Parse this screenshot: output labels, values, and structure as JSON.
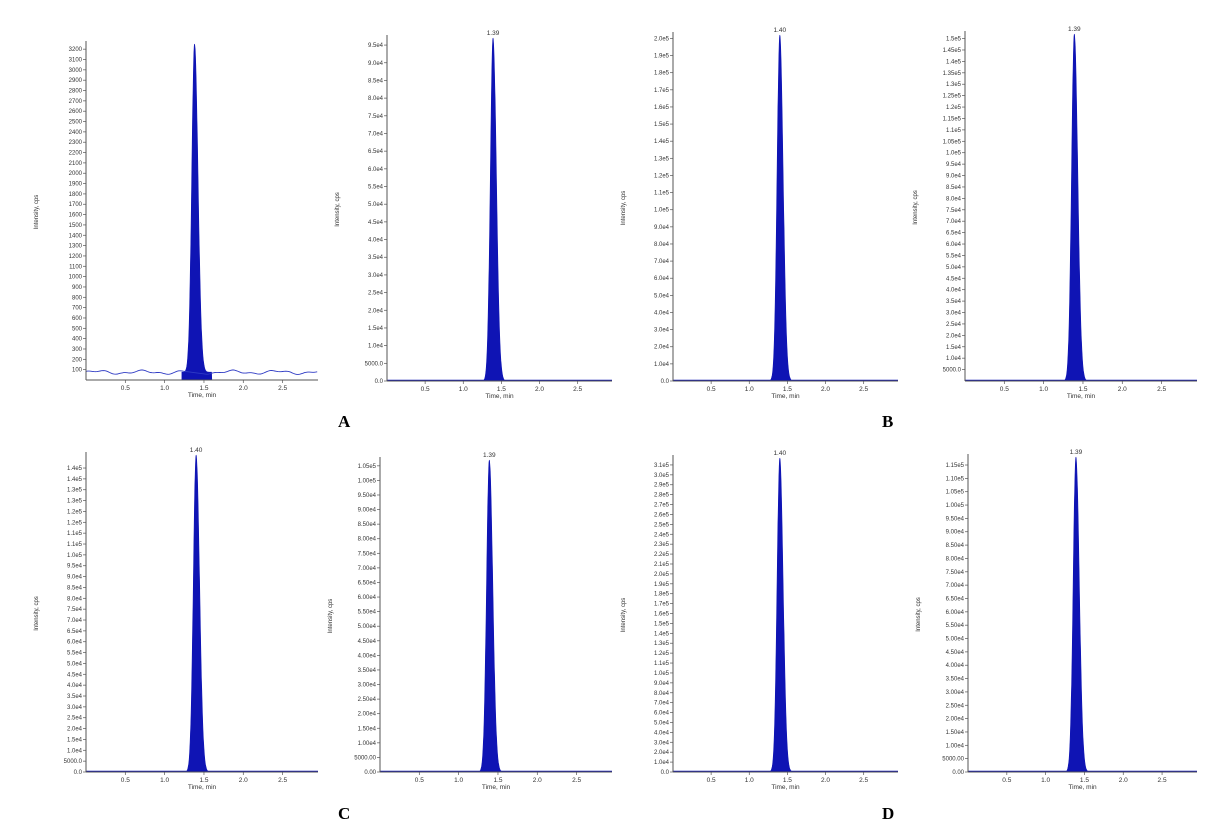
{
  "panel_labels": [
    "A",
    "B",
    "C",
    "D"
  ],
  "chart_data": [
    {
      "type": "area",
      "xlabel": "Time, min",
      "ylabel": "Intensity, cps",
      "title": "",
      "xlim": [
        0,
        2.95
      ],
      "ylim": [
        0,
        3250
      ],
      "peak_rt": 1.38,
      "peak_height": 3250,
      "peak_label": "",
      "baseline": "noisy",
      "baseline_level": 75,
      "xticks": [
        "0.5",
        "1.0",
        "1.5",
        "2.0",
        "2.5"
      ],
      "yticks": [
        "100",
        "200",
        "300",
        "400",
        "500",
        "600",
        "700",
        "800",
        "900",
        "1000",
        "1100",
        "1200",
        "1300",
        "1400",
        "1500",
        "1600",
        "1700",
        "1800",
        "1900",
        "2000",
        "2100",
        "2200",
        "2300",
        "2400",
        "2500",
        "2600",
        "2700",
        "2800",
        "2900",
        "3000",
        "3100",
        "3200"
      ],
      "ytick_values": [
        100,
        200,
        300,
        400,
        500,
        600,
        700,
        800,
        900,
        1000,
        1100,
        1200,
        1300,
        1400,
        1500,
        1600,
        1700,
        1800,
        1900,
        2000,
        2100,
        2200,
        2300,
        2400,
        2500,
        2600,
        2700,
        2800,
        2900,
        3000,
        3100,
        3200
      ]
    },
    {
      "type": "area",
      "xlabel": "Time, min",
      "ylabel": "Intensity, cps",
      "title": "",
      "xlim": [
        0,
        2.95
      ],
      "ylim": [
        0,
        97000
      ],
      "peak_rt": 1.39,
      "peak_height": 97000,
      "peak_label": "1.39",
      "baseline": "flat",
      "baseline_level": 0,
      "xticks": [
        "0.5",
        "1.0",
        "1.5",
        "2.0",
        "2.5"
      ],
      "yticks": [
        "0.0",
        "5000.0",
        "1.0e4",
        "1.5e4",
        "2.0e4",
        "2.5e4",
        "3.0e4",
        "3.5e4",
        "4.0e4",
        "4.5e4",
        "5.0e4",
        "5.5e4",
        "6.0e4",
        "6.5e4",
        "7.0e4",
        "7.5e4",
        "8.0e4",
        "8.5e4",
        "9.0e4",
        "9.5e4"
      ],
      "ytick_values": [
        0,
        5000,
        10000,
        15000,
        20000,
        25000,
        30000,
        35000,
        40000,
        45000,
        50000,
        55000,
        60000,
        65000,
        70000,
        75000,
        80000,
        85000,
        90000,
        95000
      ]
    },
    {
      "type": "area",
      "xlabel": "Time, min",
      "ylabel": "Intensity, cps",
      "title": "",
      "xlim": [
        0,
        2.95
      ],
      "ylim": [
        0,
        202000
      ],
      "peak_rt": 1.4,
      "peak_height": 202000,
      "peak_label": "1.40",
      "baseline": "flat",
      "baseline_level": 0,
      "xticks": [
        "0.5",
        "1.0",
        "1.5",
        "2.0",
        "2.5"
      ],
      "yticks": [
        "0.0",
        "1.0e4",
        "2.0e4",
        "3.0e4",
        "4.0e4",
        "5.0e4",
        "6.0e4",
        "7.0e4",
        "8.0e4",
        "9.0e4",
        "1.0e5",
        "1.1e5",
        "1.2e5",
        "1.3e5",
        "1.4e5",
        "1.5e5",
        "1.6e5",
        "1.7e5",
        "1.8e5",
        "1.9e5",
        "2.0e5"
      ],
      "ytick_values": [
        0,
        10000,
        20000,
        30000,
        40000,
        50000,
        60000,
        70000,
        80000,
        90000,
        100000,
        110000,
        120000,
        130000,
        140000,
        150000,
        160000,
        170000,
        180000,
        190000,
        200000
      ]
    },
    {
      "type": "area",
      "xlabel": "Time, min",
      "ylabel": "Intensity, cps",
      "title": "",
      "xlim": [
        0,
        2.95
      ],
      "ylim": [
        0,
        152000
      ],
      "peak_rt": 1.39,
      "peak_height": 152000,
      "peak_label": "1.39",
      "baseline": "flat",
      "baseline_level": 0,
      "xticks": [
        "0.5",
        "1.0",
        "1.5",
        "2.0",
        "2.5"
      ],
      "yticks": [
        "5000.0",
        "1.0e4",
        "1.5e4",
        "2.0e4",
        "2.5e4",
        "3.0e4",
        "3.5e4",
        "4.0e4",
        "4.5e4",
        "5.0e4",
        "5.5e4",
        "6.0e4",
        "6.5e4",
        "7.0e4",
        "7.5e4",
        "8.0e4",
        "8.5e4",
        "9.0e4",
        "9.5e4",
        "1.0e5",
        "1.05e5",
        "1.1e5",
        "1.15e5",
        "1.2e5",
        "1.25e5",
        "1.3e5",
        "1.35e5",
        "1.4e5",
        "1.45e5",
        "1.5e5"
      ],
      "ytick_values": [
        5000,
        10000,
        15000,
        20000,
        25000,
        30000,
        35000,
        40000,
        45000,
        50000,
        55000,
        60000,
        65000,
        70000,
        75000,
        80000,
        85000,
        90000,
        95000,
        100000,
        105000,
        110000,
        115000,
        120000,
        125000,
        130000,
        135000,
        140000,
        145000,
        150000
      ]
    },
    {
      "type": "area",
      "xlabel": "Time, min",
      "ylabel": "Intensity, cps",
      "title": "",
      "xlim": [
        0,
        2.95
      ],
      "ylim": [
        0,
        146000
      ],
      "peak_rt": 1.4,
      "peak_height": 146000,
      "peak_label": "1.40",
      "baseline": "flat",
      "baseline_level": 0,
      "xticks": [
        "0.5",
        "1.0",
        "1.5",
        "2.0",
        "2.5"
      ],
      "yticks": [
        "0.0",
        "5000.0",
        "1.0e4",
        "1.5e4",
        "2.0e4",
        "2.5e4",
        "3.0e4",
        "3.5e4",
        "4.0e4",
        "4.5e4",
        "5.0e4",
        "5.5e4",
        "6.0e4",
        "6.5e4",
        "7.0e4",
        "7.5e4",
        "8.0e4",
        "8.5e4",
        "9.0e4",
        "9.5e4",
        "1.0e5",
        "1.1e5",
        "1.1e5",
        "1.2e5",
        "1.2e5",
        "1.3e5",
        "1.3e5",
        "1.4e5",
        "1.4e5"
      ],
      "ytick_values": [
        0,
        5000,
        10000,
        15000,
        20000,
        25000,
        30000,
        35000,
        40000,
        45000,
        50000,
        55000,
        60000,
        65000,
        70000,
        75000,
        80000,
        85000,
        90000,
        95000,
        100000,
        105000,
        110000,
        115000,
        120000,
        125000,
        130000,
        135000,
        140000
      ]
    },
    {
      "type": "area",
      "xlabel": "Time, min",
      "ylabel": "Intensity, cps",
      "title": "",
      "xlim": [
        0,
        2.95
      ],
      "ylim": [
        0,
        107000
      ],
      "peak_rt": 1.39,
      "peak_height": 107000,
      "peak_label": "1.39",
      "baseline": "flat",
      "baseline_level": 0,
      "xticks": [
        "0.5",
        "1.0",
        "1.5",
        "2.0",
        "2.5"
      ],
      "yticks": [
        "0.00",
        "5000.00",
        "1.00e4",
        "1.50e4",
        "2.00e4",
        "2.50e4",
        "3.00e4",
        "3.50e4",
        "4.00e4",
        "4.50e4",
        "5.00e4",
        "5.50e4",
        "6.00e4",
        "6.50e4",
        "7.00e4",
        "7.50e4",
        "8.00e4",
        "8.50e4",
        "9.00e4",
        "9.50e4",
        "1.00e5",
        "1.05e5"
      ],
      "ytick_values": [
        0,
        5000,
        10000,
        15000,
        20000,
        25000,
        30000,
        35000,
        40000,
        45000,
        50000,
        55000,
        60000,
        65000,
        70000,
        75000,
        80000,
        85000,
        90000,
        95000,
        100000,
        105000
      ]
    },
    {
      "type": "area",
      "xlabel": "Time, min",
      "ylabel": "Intensity, cps",
      "title": "",
      "xlim": [
        0,
        2.95
      ],
      "ylim": [
        0,
        317000
      ],
      "peak_rt": 1.4,
      "peak_height": 317000,
      "peak_label": "1.40",
      "baseline": "flat",
      "baseline_level": 0,
      "xticks": [
        "0.5",
        "1.0",
        "1.5",
        "2.0",
        "2.5"
      ],
      "yticks": [
        "0.0",
        "1.0e4",
        "2.0e4",
        "3.0e4",
        "4.0e4",
        "5.0e4",
        "6.0e4",
        "7.0e4",
        "8.0e4",
        "9.0e4",
        "1.0e5",
        "1.1e5",
        "1.2e5",
        "1.3e5",
        "1.4e5",
        "1.5e5",
        "1.6e5",
        "1.7e5",
        "1.8e5",
        "1.9e5",
        "2.0e5",
        "2.1e5",
        "2.2e5",
        "2.3e5",
        "2.4e5",
        "2.5e5",
        "2.6e5",
        "2.7e5",
        "2.8e5",
        "2.9e5",
        "3.0e5",
        "3.1e5"
      ],
      "ytick_values": [
        0,
        10000,
        20000,
        30000,
        40000,
        50000,
        60000,
        70000,
        80000,
        90000,
        100000,
        110000,
        120000,
        130000,
        140000,
        150000,
        160000,
        170000,
        180000,
        190000,
        200000,
        210000,
        220000,
        230000,
        240000,
        250000,
        260000,
        270000,
        280000,
        290000,
        300000,
        310000
      ]
    },
    {
      "type": "area",
      "xlabel": "Time, min",
      "ylabel": "Intensity, cps",
      "title": "",
      "xlim": [
        0,
        2.95
      ],
      "ylim": [
        0,
        118000
      ],
      "peak_rt": 1.39,
      "peak_height": 118000,
      "peak_label": "1.39",
      "baseline": "flat",
      "baseline_level": 0,
      "xticks": [
        "0.5",
        "1.0",
        "1.5",
        "2.0",
        "2.5"
      ],
      "yticks": [
        "0.00",
        "5000.00",
        "1.00e4",
        "1.50e4",
        "2.00e4",
        "2.50e4",
        "3.00e4",
        "3.50e4",
        "4.00e4",
        "4.50e4",
        "5.00e4",
        "5.50e4",
        "6.00e4",
        "6.50e4",
        "7.00e4",
        "7.50e4",
        "8.00e4",
        "8.50e4",
        "9.00e4",
        "9.50e4",
        "1.00e5",
        "1.05e5",
        "1.10e5",
        "1.15e5"
      ],
      "ytick_values": [
        0,
        5000,
        10000,
        15000,
        20000,
        25000,
        30000,
        35000,
        40000,
        45000,
        50000,
        55000,
        60000,
        65000,
        70000,
        75000,
        80000,
        85000,
        90000,
        95000,
        100000,
        105000,
        110000,
        115000
      ]
    }
  ],
  "colors": {
    "peak_fill": "#0f14b4",
    "axis": "#555555",
    "tick_text": "#333333",
    "baseline_noise": "#2f3bc4"
  }
}
